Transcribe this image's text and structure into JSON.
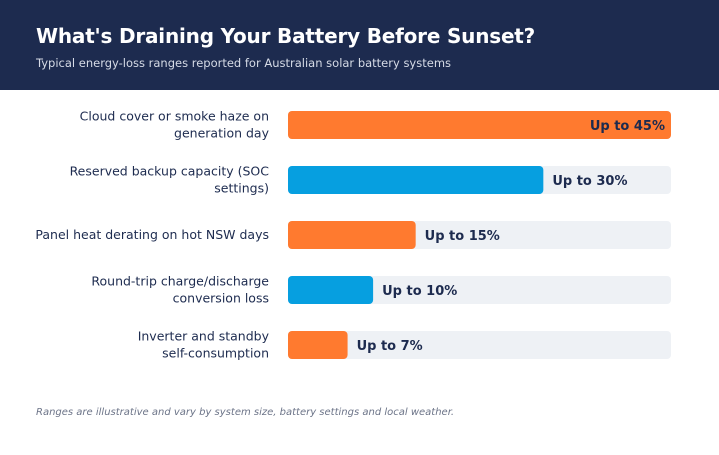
{
  "header": {
    "title": "What's Draining Your Battery Before Sunset?",
    "subtitle": "Typical energy-loss ranges reported for Australian solar battery systems"
  },
  "footnote": "Ranges are illustrative and vary by system size, battery settings and local weather.",
  "colors": {
    "header_bg": "#1d2b4f",
    "orange": "#ff7a2f",
    "blue": "#069fe0",
    "track": "#eef1f5",
    "label_text": "#1d2b4f"
  },
  "chart_data": {
    "type": "bar",
    "orientation": "horizontal",
    "categories": [
      [
        "Cloud cover or smoke haze on",
        "generation day"
      ],
      [
        "Reserved backup capacity (SOC",
        "settings)"
      ],
      [
        "Panel heat derating on hot NSW days"
      ],
      [
        "Round-trip charge/discharge",
        "conversion loss"
      ],
      [
        "Inverter and standby",
        "self-consumption"
      ]
    ],
    "values": [
      45,
      30,
      15,
      10,
      7
    ],
    "value_labels": [
      "Up to 45%",
      "Up to 30%",
      "Up to 15%",
      "Up to 10%",
      "Up to 7%"
    ],
    "bar_colors": [
      "orange",
      "blue",
      "orange",
      "blue",
      "orange"
    ],
    "xlim": [
      0,
      45
    ],
    "grid": false,
    "legend": false
  }
}
